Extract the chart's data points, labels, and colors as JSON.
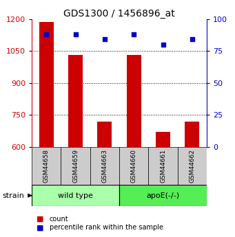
{
  "title": "GDS1300 / 1456896_at",
  "samples": [
    "GSM44658",
    "GSM44659",
    "GSM44663",
    "GSM44660",
    "GSM44661",
    "GSM44662"
  ],
  "counts": [
    1185,
    1030,
    720,
    1030,
    670,
    720
  ],
  "percentiles": [
    88,
    88,
    84,
    88,
    80,
    84
  ],
  "groups": [
    {
      "label": "wild type",
      "indices": [
        0,
        1,
        2
      ],
      "color": "#aaffaa"
    },
    {
      "label": "apoE(-/-)",
      "indices": [
        3,
        4,
        5
      ],
      "color": "#55ee55"
    }
  ],
  "ylim_left": [
    600,
    1200
  ],
  "ylim_right": [
    0,
    100
  ],
  "yticks_left": [
    600,
    750,
    900,
    1050,
    1200
  ],
  "yticks_right": [
    0,
    25,
    50,
    75,
    100
  ],
  "bar_color": "#cc0000",
  "dot_color": "#0000cc",
  "bar_width": 0.5,
  "label_count": "count",
  "label_pct": "percentile rank within the sample",
  "strain_label": "strain",
  "bg_color": "#ffffff",
  "sample_box_color": "#cccccc"
}
